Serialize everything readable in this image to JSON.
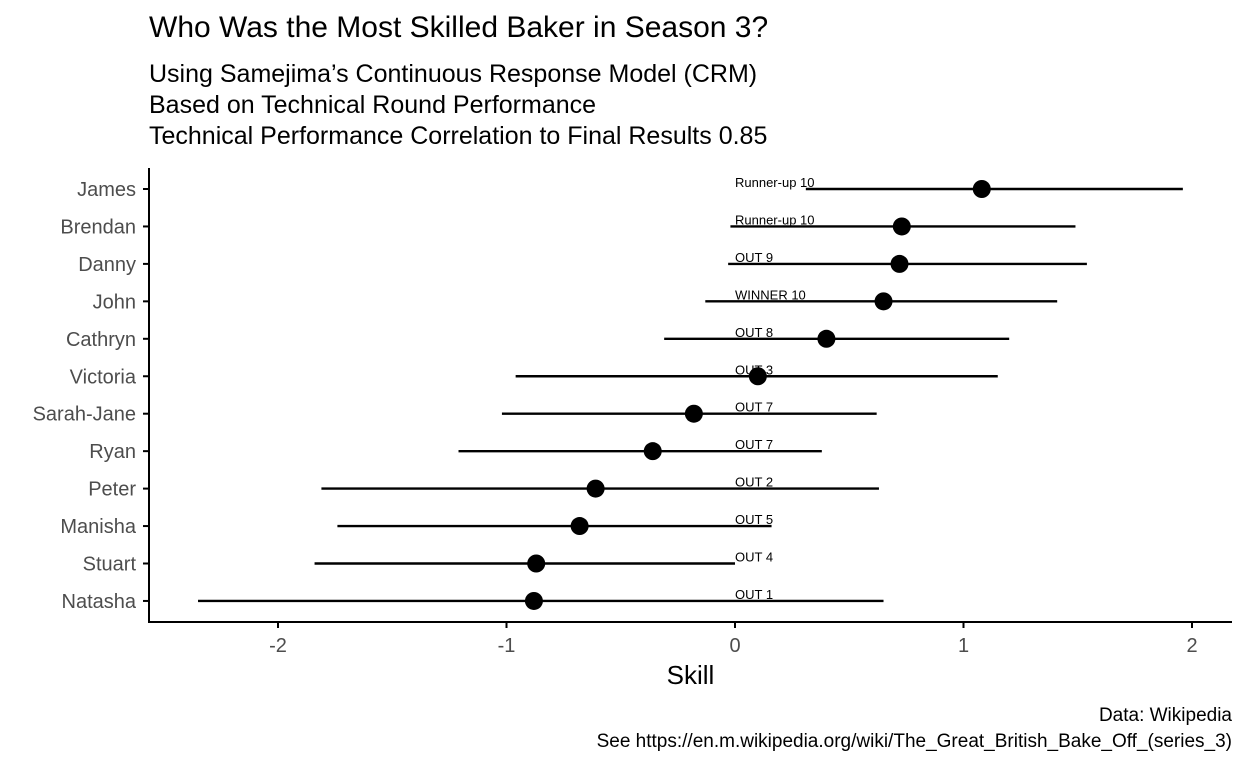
{
  "chart_data": {
    "type": "scatter",
    "title": "Who Was the Most Skilled Baker in Season 3?",
    "subtitle": [
      "Using Samejima’s Continuous Response Model (CRM)",
      "Based on Technical Round Performance",
      "Technical Performance Correlation to Final Results 0.85"
    ],
    "xlabel": "Skill",
    "ylabel": "",
    "xlim": [
      -2.55,
      2.2
    ],
    "xticks": [
      -2,
      -1,
      0,
      1,
      2
    ],
    "xtick_labels": [
      "-2",
      "-1",
      "0",
      "1",
      "2"
    ],
    "grid": false,
    "series": [
      {
        "points": [
          {
            "baker": "James",
            "skill": 1.08,
            "lower": 0.31,
            "upper": 1.96,
            "result": "Runner-up 10"
          },
          {
            "baker": "Brendan",
            "skill": 0.73,
            "lower": -0.02,
            "upper": 1.49,
            "result": "Runner-up 10"
          },
          {
            "baker": "Danny",
            "skill": 0.72,
            "lower": -0.03,
            "upper": 1.54,
            "result": "OUT 9"
          },
          {
            "baker": "John",
            "skill": 0.65,
            "lower": -0.13,
            "upper": 1.41,
            "result": "WINNER 10"
          },
          {
            "baker": "Cathryn",
            "skill": 0.4,
            "lower": -0.31,
            "upper": 1.2,
            "result": "OUT 8"
          },
          {
            "baker": "Victoria",
            "skill": 0.1,
            "lower": -0.96,
            "upper": 1.15,
            "result": "OUT 3"
          },
          {
            "baker": "Sarah-Jane",
            "skill": -0.18,
            "lower": -1.02,
            "upper": 0.62,
            "result": "OUT 7"
          },
          {
            "baker": "Ryan",
            "skill": -0.36,
            "lower": -1.21,
            "upper": 0.38,
            "result": "OUT 7"
          },
          {
            "baker": "Peter",
            "skill": -0.61,
            "lower": -1.81,
            "upper": 0.63,
            "result": "OUT 2"
          },
          {
            "baker": "Manisha",
            "skill": -0.68,
            "lower": -1.74,
            "upper": 0.16,
            "result": "OUT 5"
          },
          {
            "baker": "Stuart",
            "skill": -0.87,
            "lower": -1.84,
            "upper": 0.0,
            "result": "OUT 4"
          },
          {
            "baker": "Natasha",
            "skill": -0.88,
            "lower": -2.35,
            "upper": 0.65,
            "result": "OUT 1"
          }
        ]
      }
    ],
    "caption": [
      "Data: Wikipedia",
      "See https://en.m.wikipedia.org/wiki/The_Great_British_Bake_Off_(series_3)"
    ],
    "colors": {
      "point": "#000000",
      "line": "#000000",
      "axis": "#000000",
      "tick_label": "#4d4d4d",
      "background": "#ffffff"
    }
  }
}
